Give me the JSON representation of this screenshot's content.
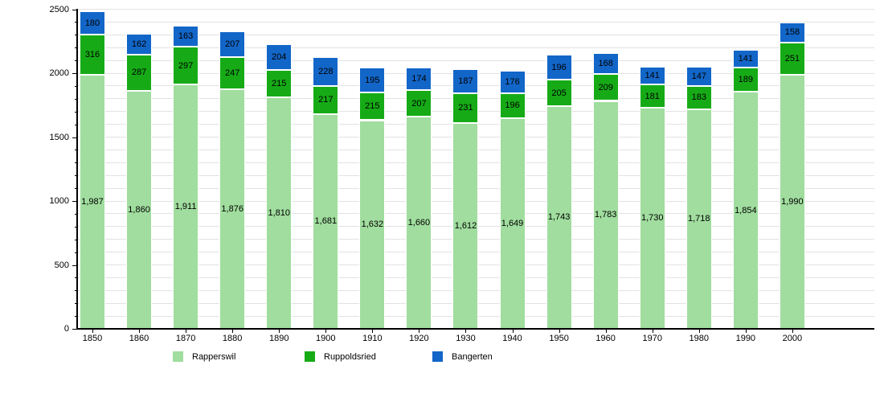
{
  "chart_data": {
    "type": "bar",
    "stacked": true,
    "title": "",
    "xlabel": "",
    "ylabel": "",
    "categories": [
      "1850",
      "1860",
      "1870",
      "1880",
      "1890",
      "1900",
      "1910",
      "1920",
      "1930",
      "1940",
      "1950",
      "1960",
      "1970",
      "1980",
      "1990",
      "2000"
    ],
    "series": [
      {
        "name": "Rapperswil",
        "color": "#a0dd9e",
        "values": [
          1987,
          1860,
          1911,
          1876,
          1810,
          1681,
          1632,
          1660,
          1612,
          1649,
          1743,
          1783,
          1730,
          1718,
          1854,
          1990
        ]
      },
      {
        "name": "Ruppoldsried",
        "color": "#16ab16",
        "values": [
          316,
          287,
          297,
          247,
          215,
          217,
          215,
          207,
          231,
          196,
          205,
          209,
          181,
          183,
          189,
          251
        ]
      },
      {
        "name": "Bangerten",
        "color": "#1266c8",
        "values": [
          180,
          162,
          163,
          207,
          204,
          228,
          195,
          174,
          187,
          176,
          196,
          168,
          141,
          147,
          141,
          158
        ]
      }
    ],
    "ylim": [
      0,
      2500
    ],
    "ytick_major": 500,
    "ytick_minor": 100,
    "ytick_labels": [
      "0",
      "500",
      "1000",
      "1500",
      "2000",
      "2500"
    ],
    "grid": true,
    "legend_position": "bottom",
    "value_labels_shown": true,
    "value_label_format": "thousands-comma",
    "colors": {
      "axis": "#000000",
      "grid": "#e2e2e2",
      "text": "#000000",
      "background": "#ffffff"
    }
  }
}
